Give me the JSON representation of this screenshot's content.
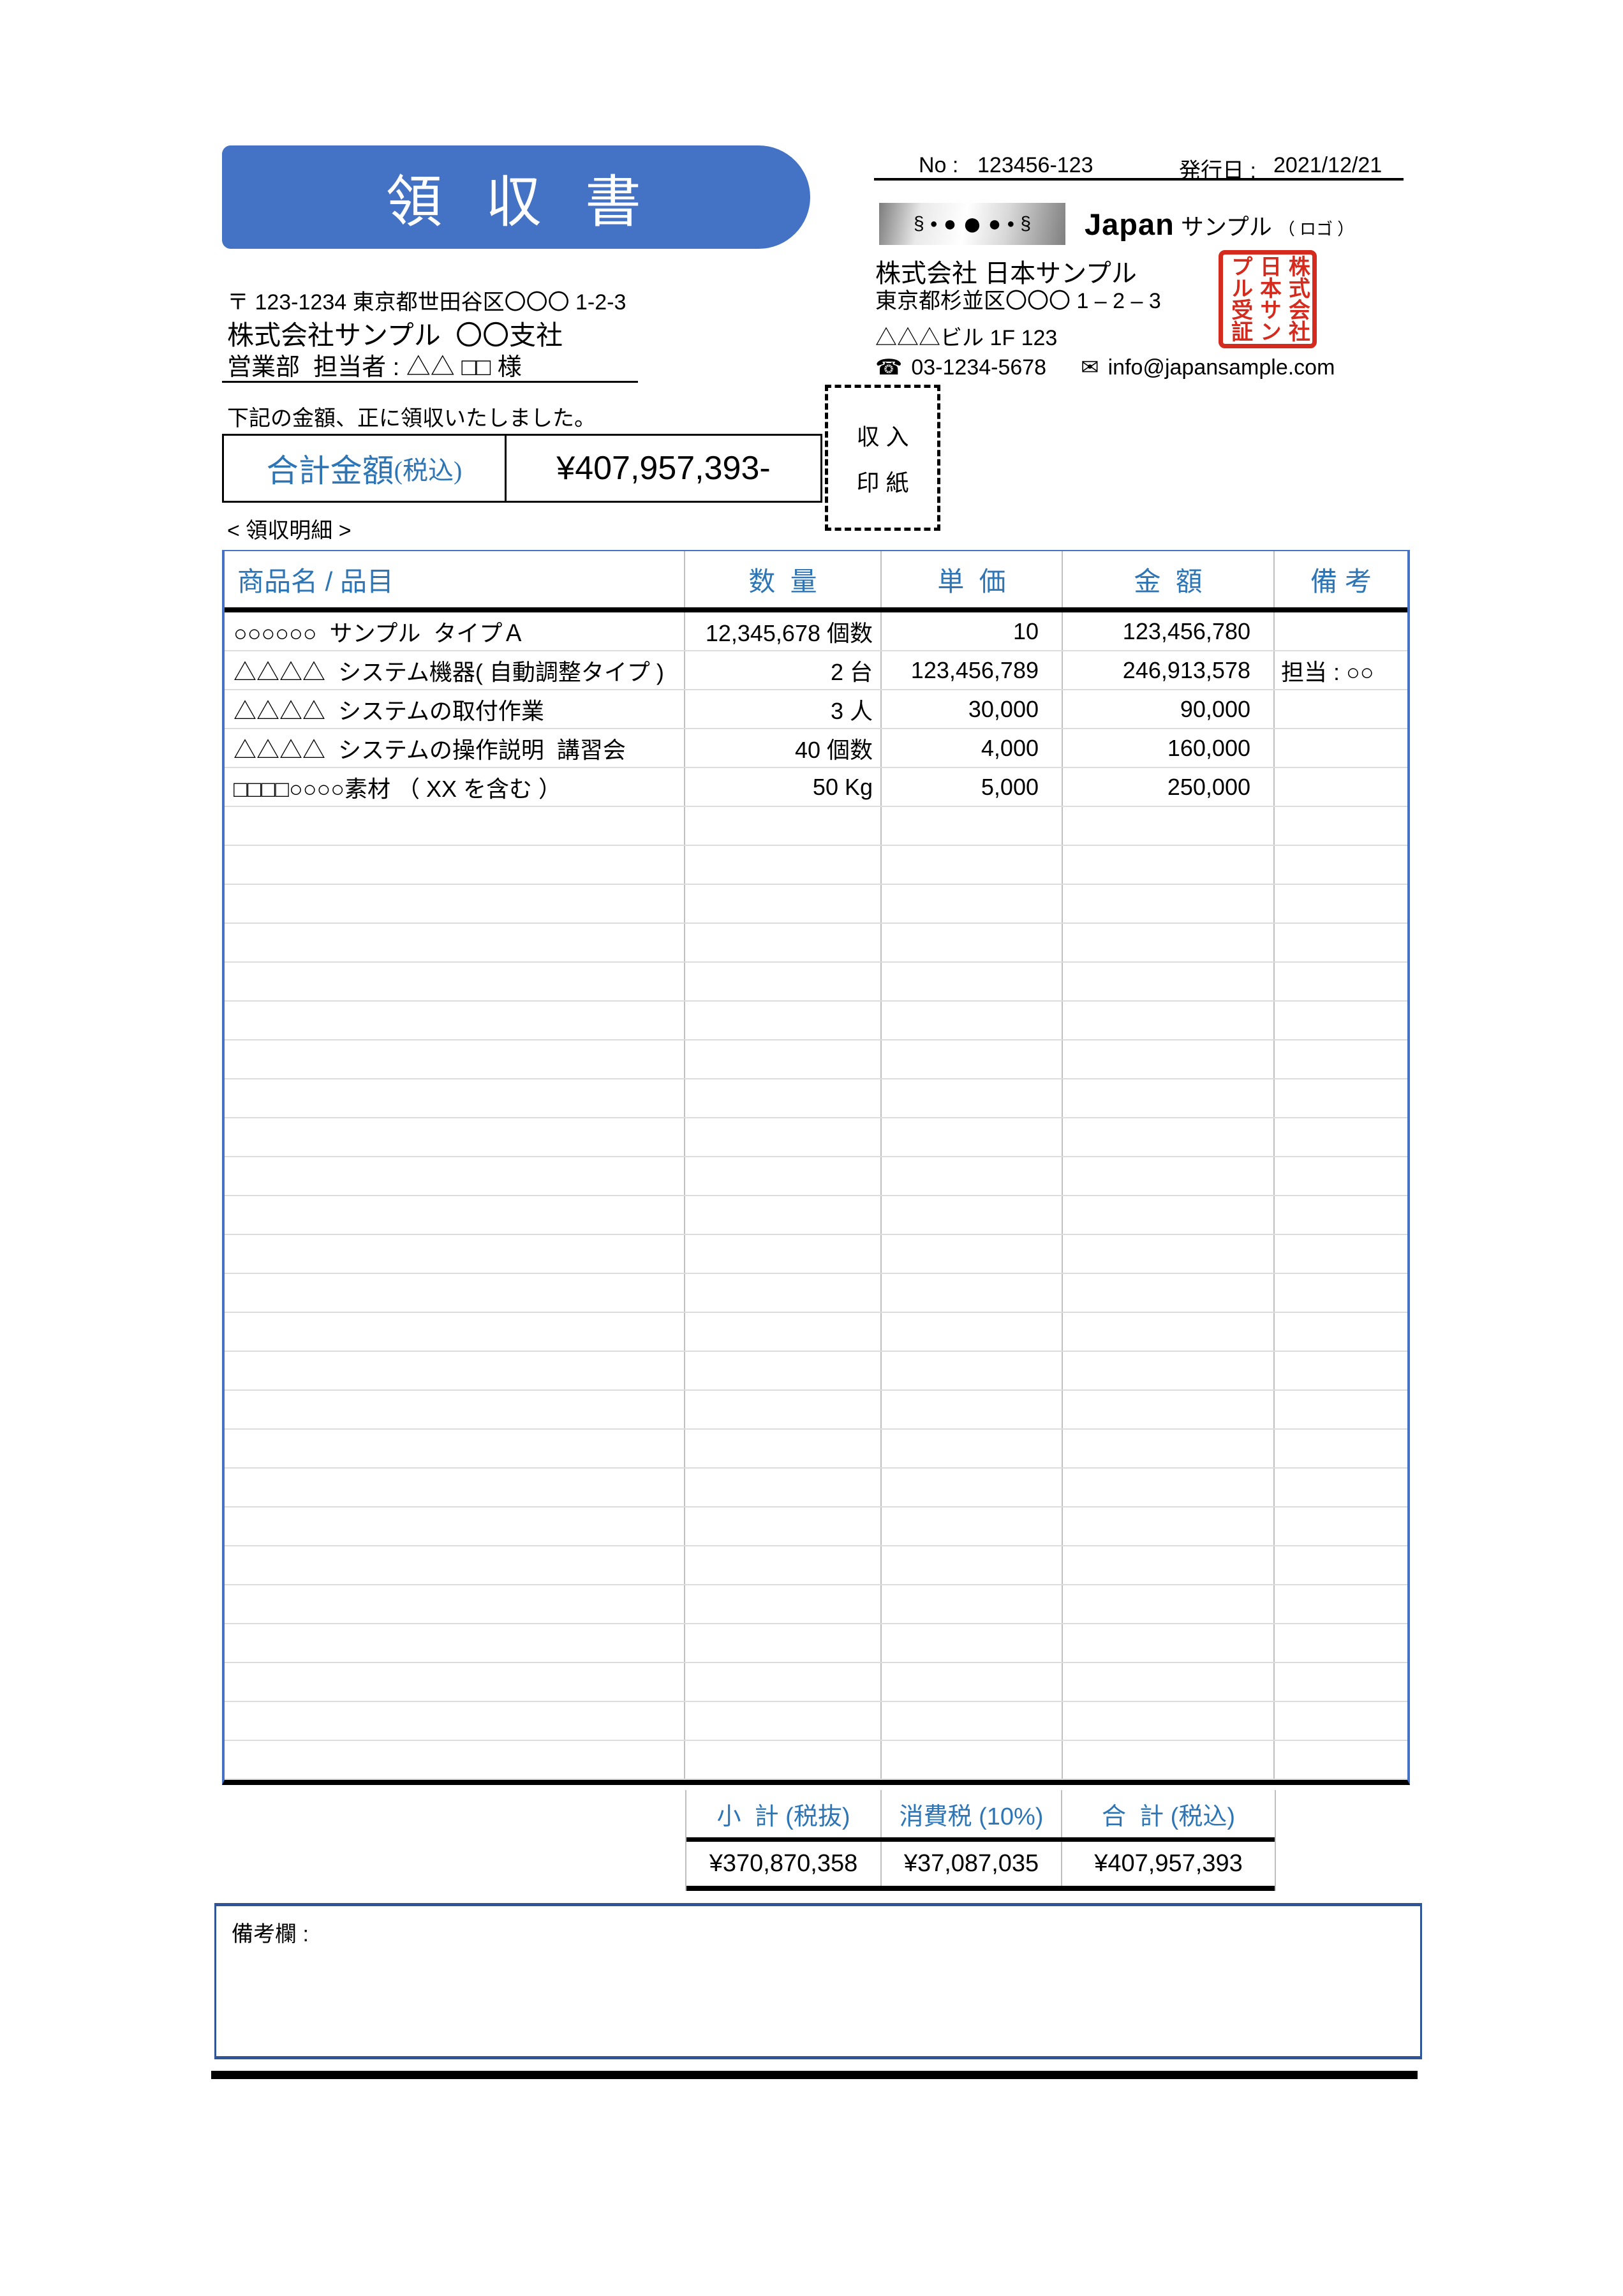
{
  "doc": {
    "title": "領  収  書",
    "meta": {
      "no_label": "No :",
      "no_value": "123456-123",
      "date_label": "発行日 :",
      "date_value": "2021/12/21"
    },
    "buyer": {
      "postal": "〒 123-1234 東京都世田谷区〇〇〇 1-2-3",
      "name": "株式会社サンプル  〇〇支社",
      "attention": "営業部  担当者 : △△ □□ 様"
    },
    "seller": {
      "logo_marks": [
        "§",
        "●",
        "●",
        "●",
        "●",
        "●",
        "§"
      ],
      "logo_mark_sizes": [
        30,
        20,
        34,
        52,
        34,
        20,
        30
      ],
      "logo_name": "Japan",
      "logo_suffix": "サンプル",
      "logo_note": "（ ロゴ ）",
      "company": "株式会社 日本サンプル",
      "address1": "東京都杉並区〇〇〇 1 – 2 – 3",
      "address2": "△△△ビル 1F 123",
      "phone_icon": "☎",
      "phone": "03-1234-5678",
      "mail_icon": "✉",
      "email": "info@japansample.com",
      "stamp_text": "株式会社日本サンプル受証"
    },
    "statement": "下記の金額、正に領収いたしました。",
    "total_box": {
      "label": "合計金額",
      "label_paren": "(税込)",
      "amount": "¥407,957,393-"
    },
    "revenue_stamp": {
      "line1": "収 入",
      "line2": "印 紙"
    },
    "details_label": "< 領収明細 >",
    "table": {
      "headers": [
        "商品名 / 品目",
        "数  量",
        "単  価",
        "金  額",
        "備 考"
      ],
      "rows": [
        {
          "item": "○○○○○○  サンプル  タイプＡ",
          "qty": "12,345,678 個数",
          "price": "10",
          "amount": "123,456,780",
          "note": ""
        },
        {
          "item": "△△△△  システム機器( 自動調整タイプ )",
          "qty": "2 台",
          "price": "123,456,789",
          "amount": "246,913,578",
          "note": "担当 : ○○"
        },
        {
          "item": "△△△△  システムの取付作業",
          "qty": "3 人",
          "price": "30,000",
          "amount": "90,000",
          "note": ""
        },
        {
          "item": "△△△△  システムの操作説明  講習会",
          "qty": "40 個数",
          "price": "4,000",
          "amount": "160,000",
          "note": ""
        },
        {
          "item": "□□□□○○○○素材 （ XX を含む ）",
          "qty": "50 Kg",
          "price": "5,000",
          "amount": "250,000",
          "note": ""
        }
      ],
      "empty_row_count": 25
    },
    "totals": {
      "labels": [
        "小  計 (税抜)",
        "消費税 (10%)",
        "合  計 (税込)"
      ],
      "values": [
        "¥370,870,358",
        "¥37,087,035",
        "¥407,957,393"
      ]
    },
    "notes": {
      "label": "備考欄 :"
    },
    "colors": {
      "accent_blue": "#4472C4",
      "heading_blue": "#2E75B6",
      "stamp_red": "#D42B1E"
    }
  }
}
